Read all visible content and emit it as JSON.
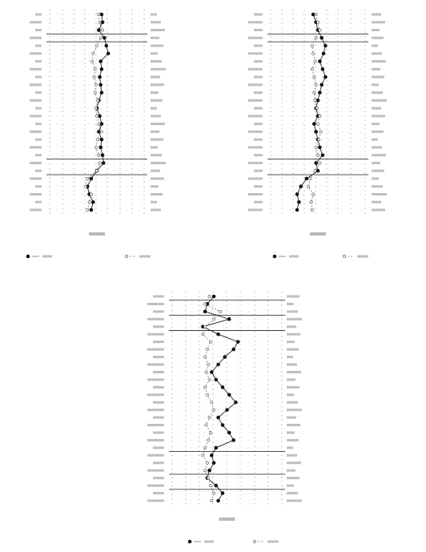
{
  "chart_data": [
    {
      "type": "line",
      "orientation": "vertical-profile",
      "title": "",
      "x_axis_label": "",
      "rows": 26,
      "xlim": [
        0,
        100
      ],
      "grid": true,
      "legend_position": "bottom",
      "series": [
        {
          "marker": "filled",
          "line": "solid",
          "values": [
            55,
            56,
            52,
            58,
            60,
            62,
            54,
            55,
            53,
            54,
            55,
            52,
            50,
            53,
            55,
            52,
            55,
            54,
            56,
            57,
            50,
            44,
            40,
            42,
            46,
            44
          ]
        },
        {
          "marker": "open",
          "line": "dashed",
          "values": [
            52,
            53,
            56,
            54,
            50,
            46,
            45,
            48,
            47,
            49,
            48,
            51,
            49,
            50,
            52,
            55,
            51,
            49,
            52,
            53,
            50,
            40,
            38,
            44,
            42,
            40
          ]
        }
      ]
    },
    {
      "type": "line",
      "orientation": "vertical-profile",
      "title": "",
      "x_axis_label": "",
      "rows": 26,
      "xlim": [
        0,
        100
      ],
      "grid": true,
      "legend_position": "bottom",
      "series": [
        {
          "marker": "filled",
          "line": "solid",
          "values": [
            45,
            48,
            50,
            54,
            58,
            56,
            52,
            55,
            58,
            54,
            52,
            50,
            48,
            50,
            46,
            48,
            50,
            52,
            55,
            48,
            50,
            38,
            32,
            28,
            30,
            28
          ]
        },
        {
          "marker": "open",
          "line": "dashed",
          "values": [
            48,
            50,
            52,
            48,
            44,
            45,
            47,
            44,
            46,
            48,
            46,
            47,
            49,
            52,
            50,
            53,
            51,
            48,
            50,
            52,
            47,
            42,
            40,
            45,
            43,
            44
          ]
        }
      ]
    },
    {
      "type": "line",
      "orientation": "vertical-profile",
      "title": "",
      "x_axis_label": "",
      "rows": 28,
      "xlim": [
        0,
        100
      ],
      "grid": true,
      "legend_position": "bottom",
      "series": [
        {
          "marker": "filled",
          "line": "solid",
          "values": [
            38,
            32,
            30,
            52,
            28,
            42,
            60,
            56,
            48,
            42,
            36,
            40,
            46,
            52,
            58,
            50,
            42,
            46,
            52,
            56,
            40,
            36,
            38,
            34,
            32,
            40,
            46,
            42
          ]
        },
        {
          "marker": "open",
          "line": "dashed",
          "values": [
            34,
            30,
            44,
            38,
            30,
            28,
            35,
            32,
            30,
            33,
            31,
            34,
            30,
            32,
            36,
            38,
            34,
            31,
            35,
            33,
            30,
            28,
            32,
            30,
            33,
            35,
            38,
            36
          ]
        }
      ]
    }
  ]
}
